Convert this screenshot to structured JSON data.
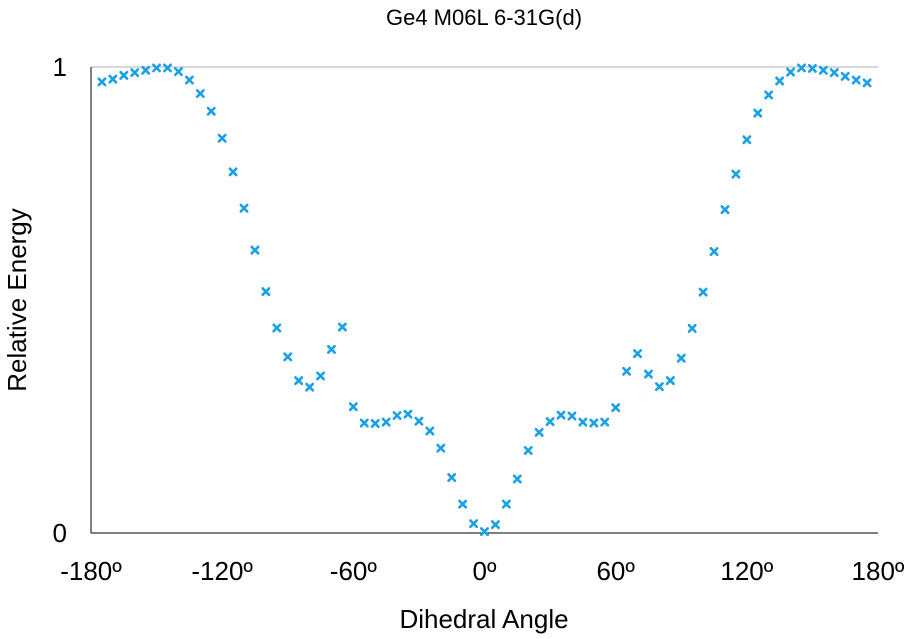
{
  "chart_data": {
    "type": "scatter",
    "title": "Ge4 M06L 6-31G(d)",
    "xlabel": "Dihedral Angle",
    "ylabel": "Relative Energy",
    "xlim": [
      -180,
      180
    ],
    "ylim": [
      0,
      1
    ],
    "x_ticks": [
      -180,
      -120,
      -60,
      0,
      60,
      120,
      180
    ],
    "x_tick_labels": [
      "-180º",
      "-120º",
      "-60º",
      "0º",
      "60º",
      "120º",
      "180º"
    ],
    "y_ticks": [
      0,
      1
    ],
    "y_tick_labels": [
      "0",
      "1"
    ],
    "grid": "top border line only",
    "marker": "x",
    "marker_color": "#1aa0e6",
    "axis_color": "#000000",
    "gridline_color": "#b0b0b0",
    "series": [
      {
        "x": [
          -175,
          -170,
          -165,
          -160,
          -155,
          -150,
          -145,
          -140,
          -135,
          -130,
          -125,
          -120,
          -115,
          -110,
          -105,
          -100,
          -95,
          -90,
          -85,
          -80,
          -75,
          -70,
          -65,
          -60,
          -55,
          -50,
          -45,
          -40,
          -35,
          -30,
          -25,
          -20,
          -15,
          -10,
          -5,
          0,
          5,
          10,
          15,
          20,
          25,
          30,
          35,
          40,
          45,
          50,
          55,
          60,
          65,
          70,
          75,
          80,
          85,
          90,
          95,
          100,
          105,
          110,
          115,
          120,
          125,
          130,
          135,
          140,
          145,
          150,
          155,
          160,
          165,
          170,
          175
        ],
        "y": [
          0.968,
          0.974,
          0.982,
          0.988,
          0.993,
          0.998,
          0.998,
          0.99,
          0.972,
          0.943,
          0.905,
          0.847,
          0.775,
          0.697,
          0.607,
          0.518,
          0.44,
          0.378,
          0.327,
          0.313,
          0.337,
          0.394,
          0.442,
          0.271,
          0.236,
          0.235,
          0.238,
          0.252,
          0.255,
          0.24,
          0.219,
          0.182,
          0.119,
          0.062,
          0.02,
          0.003,
          0.018,
          0.062,
          0.116,
          0.177,
          0.216,
          0.239,
          0.253,
          0.251,
          0.238,
          0.236,
          0.238,
          0.269,
          0.347,
          0.385,
          0.341,
          0.314,
          0.327,
          0.375,
          0.439,
          0.517,
          0.604,
          0.694,
          0.77,
          0.844,
          0.901,
          0.94,
          0.97,
          0.989,
          0.998,
          0.997,
          0.993,
          0.988,
          0.98,
          0.972,
          0.966
        ]
      }
    ]
  }
}
